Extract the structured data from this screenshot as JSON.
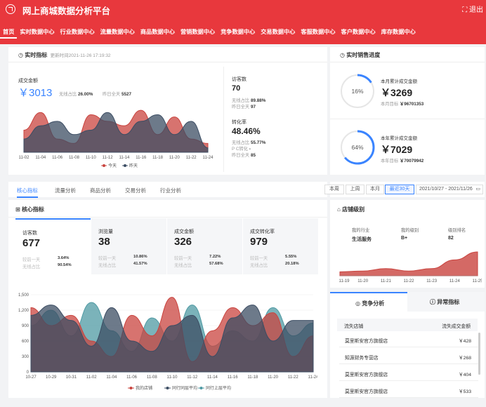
{
  "app": {
    "title": "网上商城数据分析平台",
    "fullscreen_label": "退出"
  },
  "nav": [
    "首页",
    "实时数据中心",
    "行业数据中心",
    "流量数据中心",
    "商品数据中心",
    "营销数据中心",
    "竞争数据中心",
    "交易数据中心",
    "客服数据中心",
    "客户数据中心",
    "库存数据中心"
  ],
  "realtime": {
    "title": "实时指标",
    "updated": "更新时间2021-11-26 17:19:32",
    "sales_label": "成交金额",
    "sales_value": "￥3013",
    "wireless_label": "无线占比",
    "wireless_value": "26.00%",
    "yday_label": "昨日全天",
    "yday_value": "5527",
    "visitors_label": "访客数",
    "visitors_value": "70",
    "v_wireless_label": "无线占比",
    "v_wireless_value": "89.88%",
    "v_yday_label": "昨日全天",
    "v_yday_value": "97",
    "conv_label": "转化率",
    "conv_value": "48.46%",
    "c_wireless_label": "无线占比",
    "c_wireless_value": "55.77%",
    "c_pc_label": "P C转化",
    "c_pc_value": "-",
    "c_yday_label": "昨日全天",
    "c_yday_value": "85",
    "legend_today": "今天",
    "legend_yday": "昨天"
  },
  "progress": {
    "title": "实时销售进度",
    "month_label": "本月累计成交金额",
    "month_value": "￥3269",
    "month_target_label": "本月目标",
    "month_target": "￥96701353",
    "month_pct": "16%",
    "year_label": "本年累计成交金额",
    "year_value": "￥7029",
    "year_target_label": "本年目标",
    "year_target": "￥70079942",
    "year_pct": "64%"
  },
  "tabs": [
    "核心指标",
    "流量分析",
    "商品分析",
    "交易分析",
    "行业分析"
  ],
  "periods": [
    "本周",
    "上周",
    "本月",
    "最近30天"
  ],
  "date_range": "2021/10/27 - 2021/11/26",
  "core": {
    "title": "核心指标",
    "kpis": [
      {
        "label": "访客数",
        "value": "677",
        "r1_label": "较前一天",
        "r1_value": "3.64%",
        "r2_label": "无线占比",
        "r2_value": "90.54%"
      },
      {
        "label": "浏览量",
        "value": "38",
        "r1_label": "较前一天",
        "r1_value": "10.86%",
        "r2_label": "无线占比",
        "r2_value": "41.57%"
      },
      {
        "label": "成交金额",
        "value": "326",
        "r1_label": "较前一天",
        "r1_value": "7.22%",
        "r2_label": "无线占比",
        "r2_value": "57.68%"
      },
      {
        "label": "成交转化率",
        "value": "979",
        "r1_label": "较前一天",
        "r1_value": "5.55%",
        "r2_label": "无线占比",
        "r2_value": "20.18%"
      }
    ],
    "legend": [
      "我的店铺",
      "同行同层平均",
      "同行上层平均"
    ]
  },
  "rank": {
    "title": "店铺级别",
    "industry_label": "我的行业",
    "industry_value": "生活服务",
    "level_label": "我的级别",
    "level_value": "B+",
    "rank_label": "级别排名",
    "rank_value": "82"
  },
  "compete": {
    "tab1": "竞争分析",
    "tab2": "异常指标",
    "col1": "流失店铺",
    "col2": "流失成交金额",
    "rows": [
      {
        "shop": "莫里斯安官方旗舰店",
        "amount": "￥428"
      },
      {
        "shop": "知源财务专营店",
        "amount": "￥268"
      },
      {
        "shop": "莫里斯安官方旗舰店",
        "amount": "￥404"
      },
      {
        "shop": "莫里斯安官方旗舰店",
        "amount": "￥533"
      }
    ]
  },
  "chart_data": [
    {
      "type": "area",
      "categories": [
        "11-02",
        "11-04",
        "11-06",
        "11-08",
        "11-10",
        "11-12",
        "11-14",
        "11-16",
        "11-18",
        "11-20",
        "11-22",
        "11-24"
      ],
      "series": [
        {
          "name": "今天",
          "values": [
            50,
            90,
            30,
            20,
            85,
            70,
            60,
            95,
            40,
            80,
            30,
            20
          ]
        },
        {
          "name": "昨天",
          "values": [
            30,
            60,
            70,
            40,
            50,
            90,
            40,
            70,
            85,
            40,
            70,
            10
          ]
        }
      ],
      "colors": [
        "#c9443f",
        "#3c4d63"
      ]
    },
    {
      "type": "area",
      "categories": [
        "11-19",
        "11-20",
        "11-21",
        "11-22",
        "11-23",
        "11-24",
        "11-25"
      ],
      "values": [
        10,
        12,
        18,
        12,
        18,
        40,
        60
      ],
      "color": "#c9443f"
    },
    {
      "type": "area",
      "categories": [
        "10-27",
        "10-29",
        "10-31",
        "11-02",
        "11-04",
        "11-06",
        "11-08",
        "11-10",
        "11-12",
        "11-14",
        "11-16",
        "11-18",
        "11-20",
        "11-22",
        "11-24"
      ],
      "ylim": [
        0,
        1500
      ],
      "yticks": [
        0,
        300,
        600,
        900,
        1200,
        1500
      ],
      "series": [
        {
          "name": "我的店铺",
          "values": [
            1250,
            900,
            1100,
            600,
            300,
            1100,
            700,
            1450,
            200,
            800,
            1250,
            900,
            1150,
            300,
            700
          ]
        },
        {
          "name": "同行同层平均",
          "values": [
            1100,
            1300,
            1000,
            500,
            1250,
            600,
            400,
            900,
            1100,
            300,
            1050,
            1300,
            600,
            1000,
            1000
          ]
        },
        {
          "name": "同行上层平均",
          "values": [
            900,
            1200,
            700,
            1350,
            800,
            400,
            1050,
            600,
            1300,
            500,
            800,
            600,
            1250,
            700,
            950
          ]
        }
      ],
      "colors": [
        "#c9443f",
        "#3c4d63",
        "#4f9aa3"
      ]
    }
  ]
}
